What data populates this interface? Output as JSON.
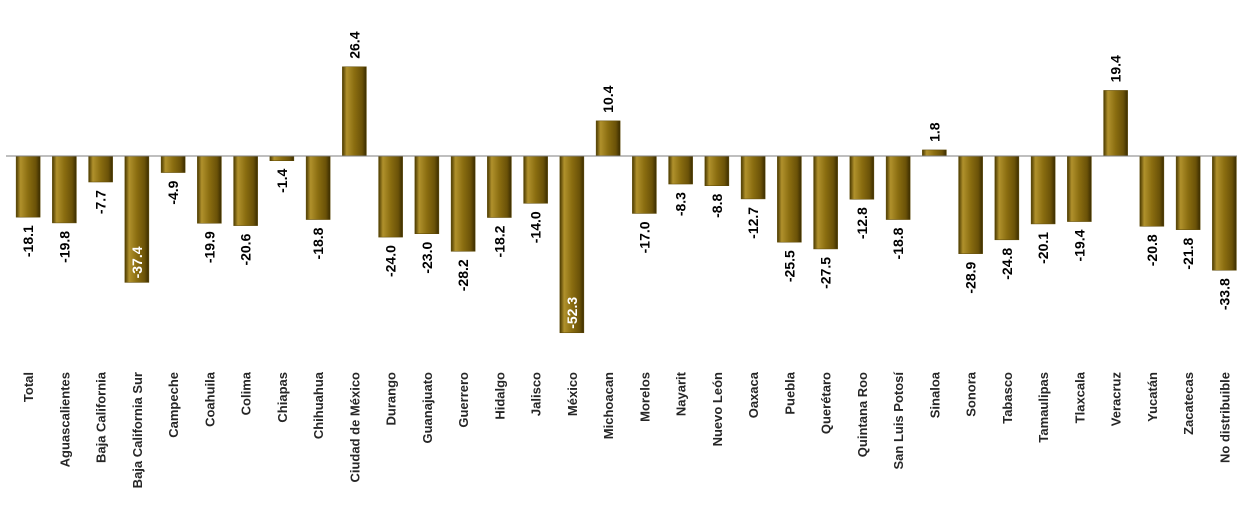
{
  "chart_data": {
    "type": "bar",
    "categories": [
      "Total",
      "Aguascalientes",
      "Baja California",
      "Baja California Sur",
      "Campeche",
      "Coahuila",
      "Colima",
      "Chiapas",
      "Chihuahua",
      "Ciudad de México",
      "Durango",
      "Guanajuato",
      "Guerrero",
      "Hidalgo",
      "Jalisco",
      "México",
      "Michoacan",
      "Morelos",
      "Nayarit",
      "Nuevo León",
      "Oaxaca",
      "Puebla",
      "Querétaro",
      "Quintana Roo",
      "San Luis Potosí",
      "Sinaloa",
      "Sonora",
      "Tabasco",
      "Tamaulipas",
      "Tlaxcala",
      "Veracruz",
      "Yucatán",
      "Zacatecas",
      "No distribuible"
    ],
    "values": [
      -18.1,
      -19.8,
      -7.7,
      -37.4,
      -4.9,
      -19.9,
      -20.6,
      -1.4,
      -18.8,
      26.4,
      -24.0,
      -23.0,
      -28.2,
      -18.2,
      -14.0,
      -52.3,
      10.4,
      -17.0,
      -8.3,
      -8.8,
      -12.7,
      -25.5,
      -27.5,
      -12.8,
      -18.8,
      1.8,
      -28.9,
      -24.8,
      -20.1,
      -19.4,
      19.4,
      -20.8,
      -21.8,
      -33.8
    ],
    "labels": [
      "-18.1",
      "-19.8",
      "-7.7",
      "-37.4",
      "-4.9",
      "-19.9",
      "-20.6",
      "-1.4",
      "-18.8",
      "26.4",
      "-24.0",
      "-23.0",
      "-28.2",
      "-18.2",
      "-14.0",
      "-52.3",
      "10.4",
      "-17.0",
      "-8.3",
      "-8.8",
      "-12.7",
      "-25.5",
      "-27.5",
      "-12.8",
      "-18.8",
      "1.8",
      "-28.9",
      "-24.8",
      "-20.1",
      "-19.4",
      "19.4",
      "-20.8",
      "-21.8",
      "-33.8"
    ],
    "labels_inside": [
      3,
      15
    ],
    "title": "",
    "xlabel": "",
    "ylabel": "",
    "ylim": [
      -52.3,
      26.4
    ],
    "grid": false,
    "legend": "none",
    "colors": {
      "bar_light": "#c8ac48",
      "bar_mid": "#8a6d10",
      "bar_dark": "#3f3000",
      "axis": "#7f7f7f"
    }
  }
}
